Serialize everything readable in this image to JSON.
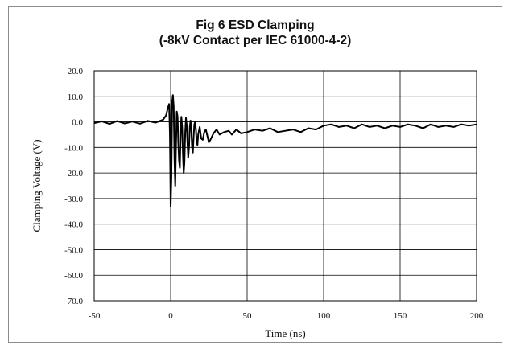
{
  "chart_data": {
    "type": "line",
    "title": "Fig 6 ESD Clamping",
    "subtitle": "(-8kV Contact per IEC 61000-4-2)",
    "xlabel": "Time (ns)",
    "ylabel": "Clamping Voltage (V)",
    "xlim": [
      -50,
      200
    ],
    "ylim": [
      -70,
      20
    ],
    "x_ticks": [
      -50,
      0,
      50,
      100,
      150,
      200
    ],
    "x_tick_labels": [
      "-50",
      "0",
      "50",
      "100",
      "150",
      "200"
    ],
    "y_ticks": [
      20,
      10,
      0,
      -10,
      -20,
      -30,
      -40,
      -50,
      -60,
      -70
    ],
    "y_tick_labels": [
      "20.0",
      "10.0",
      "0.0",
      "-10.0",
      "-20.0",
      "-30.0",
      "-40.0",
      "-50.0",
      "-60.0",
      "-70.0"
    ],
    "grid": true,
    "legend": "none",
    "line_color": "#000000",
    "series": [
      {
        "x": [
          -50,
          -45,
          -40,
          -35,
          -30,
          -25,
          -20,
          -15,
          -10,
          -5,
          -3,
          -2,
          -1,
          -0.5,
          0,
          0.5,
          1,
          1.5,
          2,
          2.5,
          3,
          3.5,
          4,
          4.5,
          5,
          5.5,
          6,
          6.5,
          7,
          7.5,
          8,
          8.5,
          9,
          9.5,
          10,
          10.5,
          11,
          11.5,
          12,
          12.5,
          13,
          13.5,
          14,
          14.5,
          15,
          15.5,
          16,
          16.5,
          17,
          17.5,
          18,
          19,
          20,
          21,
          22,
          23,
          24,
          25,
          26,
          28,
          30,
          32,
          35,
          38,
          40,
          43,
          46,
          50,
          55,
          60,
          65,
          70,
          75,
          80,
          85,
          90,
          95,
          100,
          105,
          110,
          115,
          120,
          125,
          130,
          135,
          140,
          145,
          150,
          155,
          160,
          165,
          170,
          175,
          180,
          185,
          190,
          195,
          200
        ],
        "y": [
          -0.5,
          0.2,
          -0.8,
          0.3,
          -0.6,
          0.1,
          -0.7,
          0.4,
          -0.3,
          0.8,
          2.5,
          5.0,
          7.0,
          -5.0,
          -33.0,
          -22.0,
          8.0,
          10.5,
          6.0,
          -15.0,
          -25.0,
          -10.0,
          4.0,
          2.0,
          -8.0,
          -15.0,
          -18.0,
          -5.0,
          2.0,
          -2.0,
          -12.0,
          -20.0,
          -16.0,
          -4.0,
          1.5,
          -1.0,
          -8.0,
          -14.0,
          -10.0,
          -2.0,
          0.5,
          -3.0,
          -10.0,
          -12.0,
          -6.0,
          -1.0,
          0.0,
          -3.0,
          -8.0,
          -9.0,
          -5.0,
          -2.0,
          -6.5,
          -7.0,
          -4.0,
          -3.0,
          -5.5,
          -8.0,
          -7.0,
          -4.5,
          -3.0,
          -5.0,
          -4.0,
          -3.5,
          -5.0,
          -3.0,
          -4.5,
          -4.0,
          -3.0,
          -3.5,
          -2.5,
          -4.0,
          -3.5,
          -3.0,
          -4.0,
          -2.5,
          -3.0,
          -1.5,
          -1.0,
          -2.0,
          -1.5,
          -2.5,
          -1.0,
          -2.0,
          -1.5,
          -2.5,
          -1.5,
          -2.0,
          -1.0,
          -1.5,
          -2.5,
          -1.0,
          -2.0,
          -1.5,
          -2.0,
          -1.0,
          -1.5,
          -1.0
        ]
      }
    ]
  }
}
